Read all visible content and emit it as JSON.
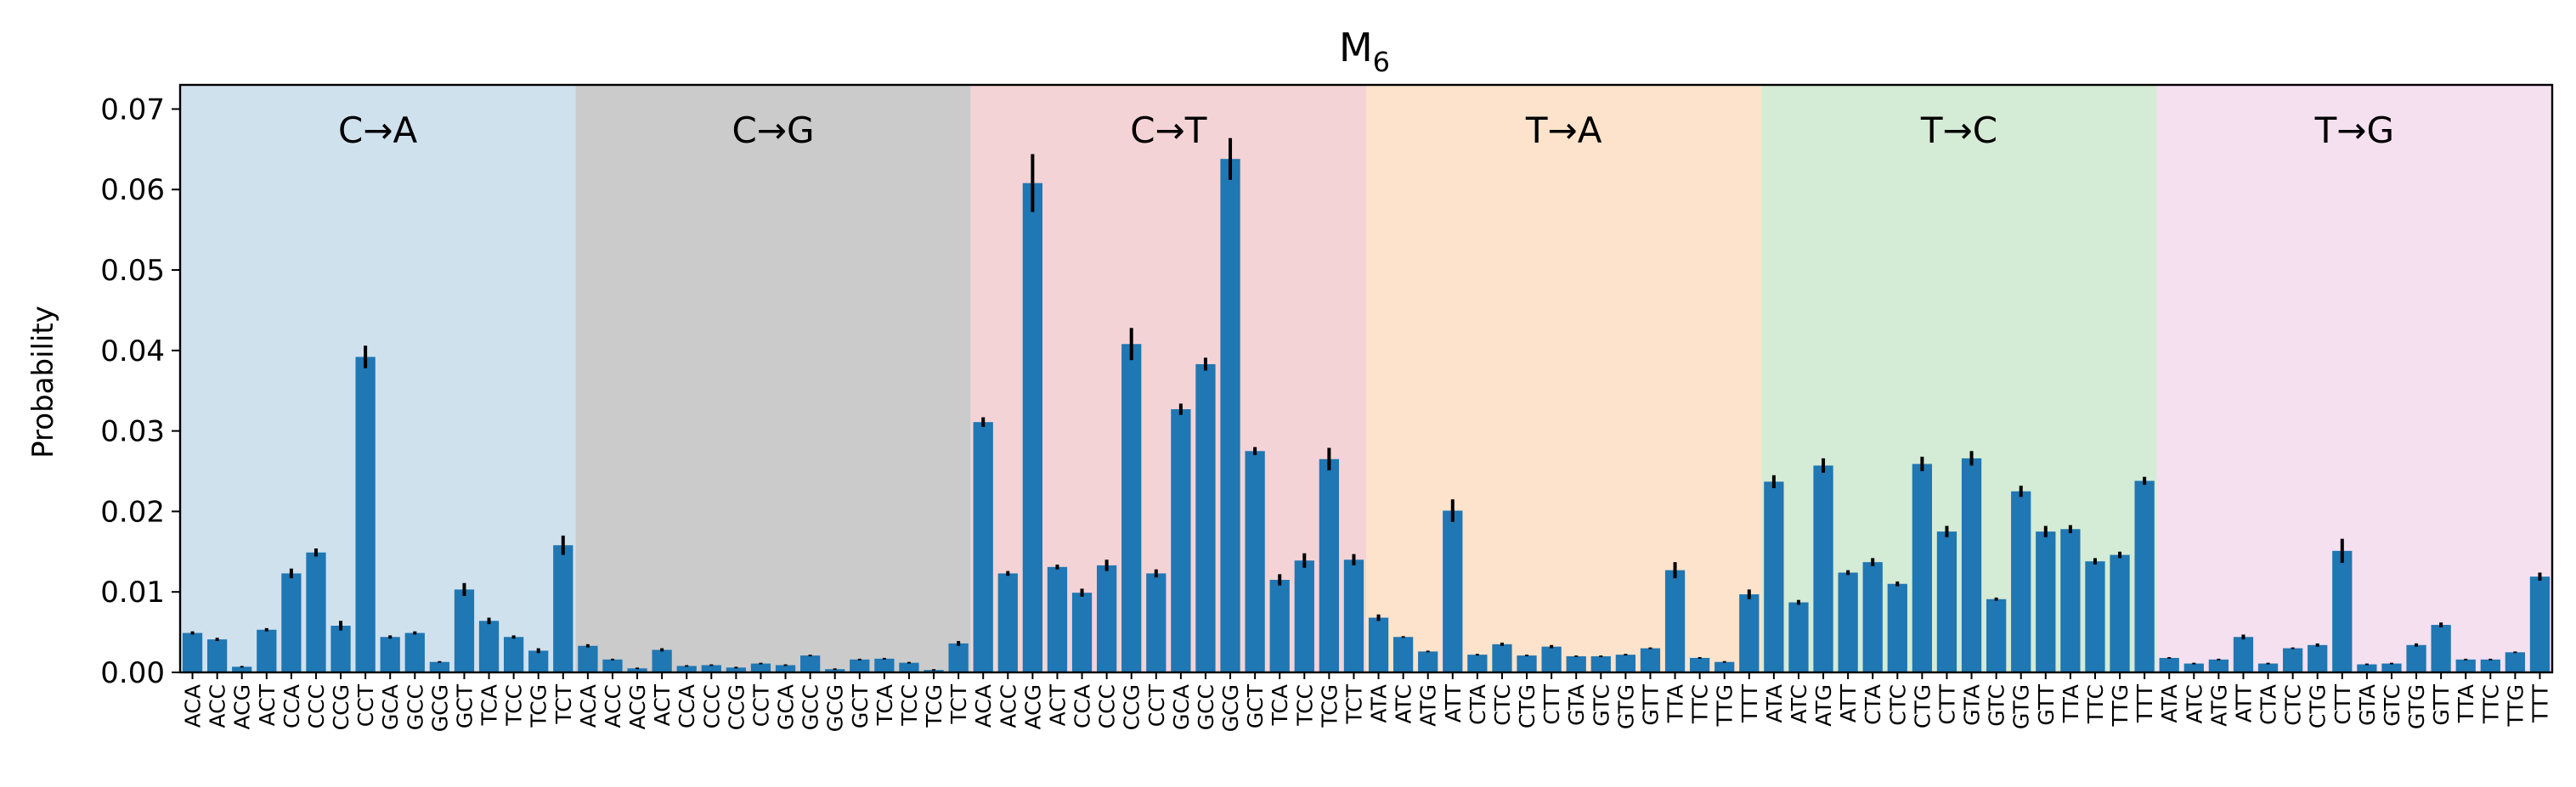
{
  "chart_data": {
    "type": "bar",
    "title": "M",
    "title_subscript": "6",
    "xlabel": "",
    "ylabel": "Probability",
    "ylim": [
      0,
      0.073
    ],
    "yticks": [
      "0.00",
      "0.01",
      "0.02",
      "0.03",
      "0.04",
      "0.05",
      "0.06",
      "0.07"
    ],
    "grid": false,
    "bar_color": "#1f77b4",
    "errorbar_color": "#000000",
    "groups": [
      {
        "label": "C→A",
        "color": "#d0e1ee"
      },
      {
        "label": "C→G",
        "color": "#cbcbcb"
      },
      {
        "label": "C→T",
        "color": "#f4d3d6"
      },
      {
        "label": "T→A",
        "color": "#fde3cb"
      },
      {
        "label": "T→C",
        "color": "#d4ebd5"
      },
      {
        "label": "T→G",
        "color": "#f5e0f0"
      }
    ],
    "categories": [
      "ACA",
      "ACC",
      "ACG",
      "ACT",
      "CCA",
      "CCC",
      "CCG",
      "CCT",
      "GCA",
      "GCC",
      "GCG",
      "GCT",
      "TCA",
      "TCC",
      "TCG",
      "TCT",
      "ACA",
      "ACC",
      "ACG",
      "ACT",
      "CCA",
      "CCC",
      "CCG",
      "CCT",
      "GCA",
      "GCC",
      "GCG",
      "GCT",
      "TCA",
      "TCC",
      "TCG",
      "TCT",
      "ACA",
      "ACC",
      "ACG",
      "ACT",
      "CCA",
      "CCC",
      "CCG",
      "CCT",
      "GCA",
      "GCC",
      "GCG",
      "GCT",
      "TCA",
      "TCC",
      "TCG",
      "TCT",
      "ATA",
      "ATC",
      "ATG",
      "ATT",
      "CTA",
      "CTC",
      "CTG",
      "CTT",
      "GTA",
      "GTC",
      "GTG",
      "GTT",
      "TTA",
      "TTC",
      "TTG",
      "TTT",
      "ATA",
      "ATC",
      "ATG",
      "ATT",
      "CTA",
      "CTC",
      "CTG",
      "CTT",
      "GTA",
      "GTC",
      "GTG",
      "GTT",
      "TTA",
      "TTC",
      "TTG",
      "TTT",
      "ATA",
      "ATC",
      "ATG",
      "ATT",
      "CTA",
      "CTC",
      "CTG",
      "CTT",
      "GTA",
      "GTC",
      "GTG",
      "GTT",
      "TTA",
      "TTC",
      "TTG",
      "TTT"
    ],
    "values": [
      0.0049,
      0.0041,
      0.0007,
      0.0053,
      0.0123,
      0.0149,
      0.0058,
      0.0392,
      0.0044,
      0.0049,
      0.0013,
      0.0103,
      0.0064,
      0.0044,
      0.0027,
      0.0158,
      0.0033,
      0.0016,
      0.0005,
      0.0028,
      0.0008,
      0.0009,
      0.0006,
      0.0011,
      0.0009,
      0.0021,
      0.0004,
      0.0016,
      0.0017,
      0.0012,
      0.0003,
      0.0036,
      0.0311,
      0.0123,
      0.0608,
      0.0131,
      0.0099,
      0.0133,
      0.0408,
      0.0123,
      0.0327,
      0.0383,
      0.0638,
      0.0275,
      0.0115,
      0.0139,
      0.0265,
      0.014,
      0.0068,
      0.0044,
      0.0026,
      0.0201,
      0.0022,
      0.0035,
      0.0021,
      0.0032,
      0.002,
      0.002,
      0.0022,
      0.003,
      0.0127,
      0.0018,
      0.0013,
      0.0097,
      0.0237,
      0.0087,
      0.0257,
      0.0124,
      0.0137,
      0.011,
      0.0259,
      0.0175,
      0.0266,
      0.0091,
      0.0225,
      0.0175,
      0.0178,
      0.0138,
      0.0146,
      0.0238,
      0.0018,
      0.0011,
      0.0016,
      0.0044,
      0.0011,
      0.003,
      0.0034,
      0.0151,
      0.001,
      0.0011,
      0.0034,
      0.0059,
      0.0016,
      0.0016,
      0.0025,
      0.0119
    ],
    "errors": [
      0.0002,
      0.0002,
      0.0001,
      0.0002,
      0.0006,
      0.0005,
      0.0006,
      0.0014,
      0.0002,
      0.0002,
      0.0001,
      0.0008,
      0.0004,
      0.0002,
      0.0003,
      0.0012,
      0.0002,
      0.0001,
      0.0001,
      0.0002,
      0.0001,
      0.0001,
      0.0001,
      0.0001,
      0.0001,
      0.0001,
      0.0001,
      0.0001,
      0.0001,
      0.0001,
      0.0001,
      0.0003,
      0.0006,
      0.0003,
      0.0036,
      0.0003,
      0.0005,
      0.0007,
      0.002,
      0.0005,
      0.0007,
      0.0008,
      0.0026,
      0.0005,
      0.0007,
      0.0009,
      0.0014,
      0.0007,
      0.0004,
      0.0001,
      0.0001,
      0.0014,
      0.0001,
      0.0002,
      0.0001,
      0.0002,
      0.0001,
      0.0001,
      0.0001,
      0.0001,
      0.001,
      0.0001,
      0.0001,
      0.0006,
      0.0008,
      0.0003,
      0.0009,
      0.0003,
      0.0005,
      0.0003,
      0.0009,
      0.0007,
      0.0009,
      0.0002,
      0.0007,
      0.0007,
      0.0005,
      0.0004,
      0.0004,
      0.0005,
      0.0001,
      0.0001,
      0.0001,
      0.0003,
      0.0001,
      0.0001,
      0.0002,
      0.0015,
      0.0001,
      0.0001,
      0.0002,
      0.0003,
      0.0001,
      0.0001,
      0.0001,
      0.0005
    ]
  }
}
